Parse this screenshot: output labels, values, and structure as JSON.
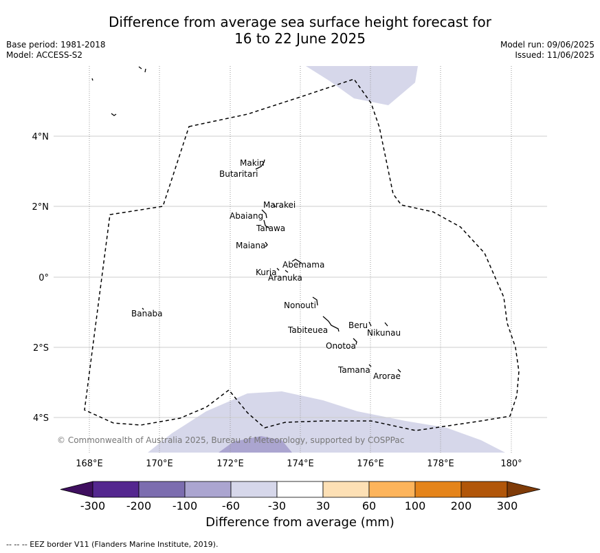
{
  "title_line1": "Difference from average sea surface height forecast for",
  "title_line2": "16 to 22 June 2025",
  "base_period": "Base period: 1981-2018",
  "model": "Model: ACCESS-S2",
  "model_run": "Model run: 09/06/2025",
  "issued": "Issued: 11/06/2025",
  "copyright": "© Commonwealth of Australia 2025, Bureau of Meteorology, supported by COSPPac",
  "lat_labels": [
    "4°N",
    "2°N",
    "0°",
    "2°S",
    "4°S"
  ],
  "lon_labels": [
    "168°E",
    "170°E",
    "172°E",
    "174°E",
    "176°E",
    "178°E",
    "180°"
  ],
  "islands": [
    "Makin",
    "Butaritari",
    "Marakei",
    "Abaiang",
    "Tarawa",
    "Maiana",
    "Abemama",
    "Kuria",
    "Aranuka",
    "Nonouti",
    "Banaba",
    "Beru",
    "Tabiteuea",
    "Nikunau",
    "Onotoa",
    "Tamana",
    "Arorae"
  ],
  "colorbar": {
    "title": "Difference from average (mm)",
    "ticks": [
      "-300",
      "-200",
      "-100",
      "-60",
      "-30",
      "30",
      "60",
      "100",
      "200",
      "300"
    ],
    "colors": [
      "#3f0f5f",
      "#54278f",
      "#7c6daf",
      "#aba5d0",
      "#d6d7ea",
      "#ffffff",
      "#fde0b5",
      "#fdb45b",
      "#e5841a",
      "#b15609",
      "#7f3b08"
    ]
  },
  "footnote": "--  --  -- EEZ border V11 (Flanders Marine Institute, 2019)."
}
